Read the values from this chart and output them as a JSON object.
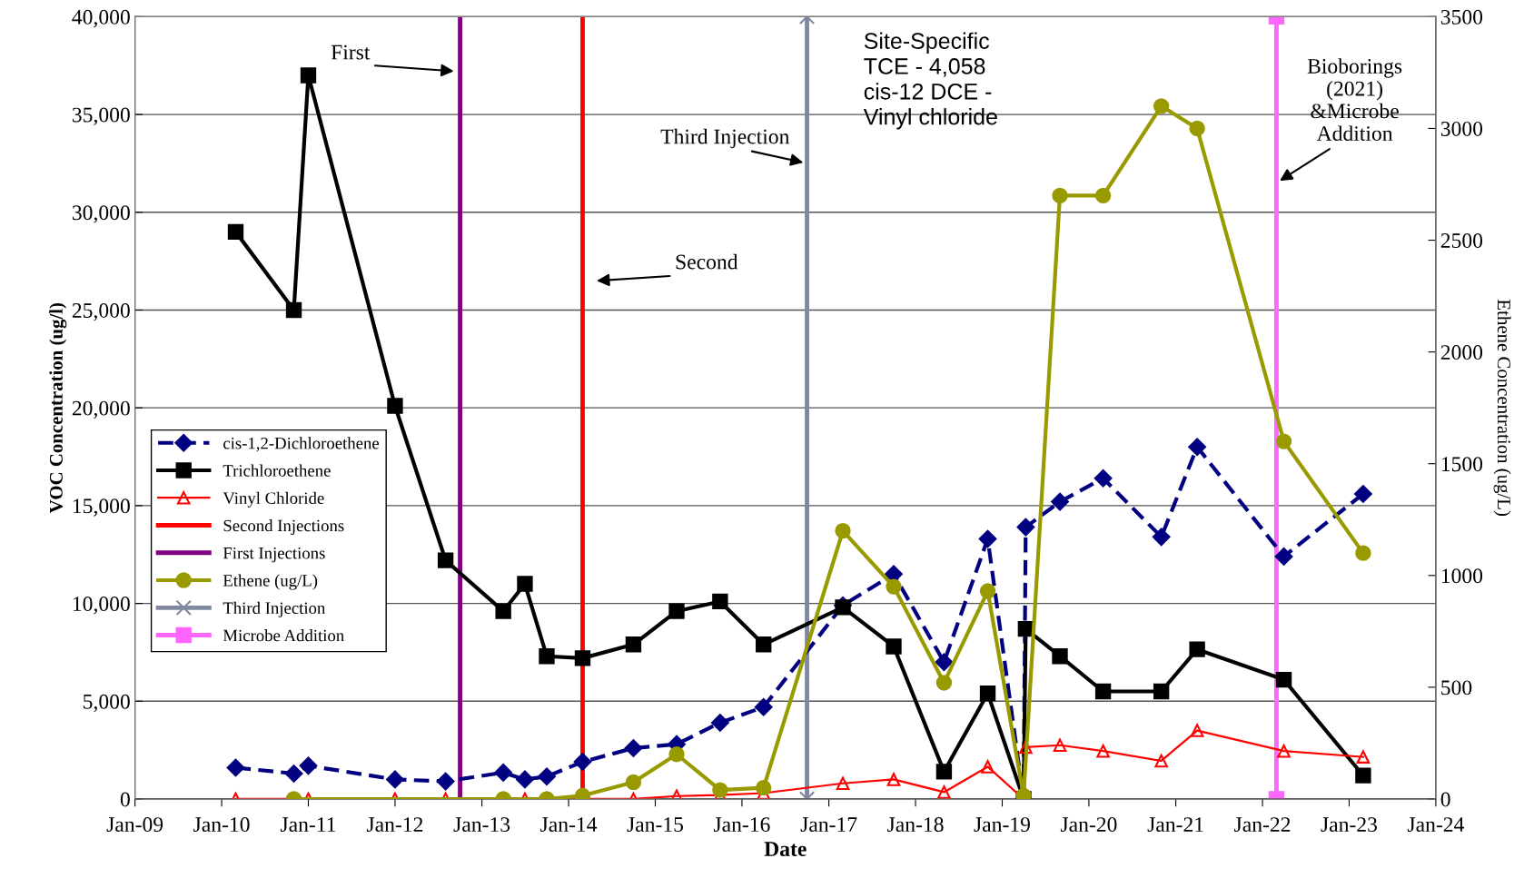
{
  "chart_data": {
    "type": "line",
    "xlabel": "Date",
    "ylabel": "VOC Concentration (ug/l)",
    "y2label": "Ethene Concentration (ug/L)",
    "xlim": [
      "2009-01",
      "2024-01"
    ],
    "xticks": [
      {
        "value": "2009-01",
        "label": "Jan-09"
      },
      {
        "value": "2010-01",
        "label": "Jan-10"
      },
      {
        "value": "2011-01",
        "label": "Jan-11"
      },
      {
        "value": "2012-01",
        "label": "Jan-12"
      },
      {
        "value": "2013-01",
        "label": "Jan-13"
      },
      {
        "value": "2014-01",
        "label": "Jan-14"
      },
      {
        "value": "2015-01",
        "label": "Jan-15"
      },
      {
        "value": "2016-01",
        "label": "Jan-16"
      },
      {
        "value": "2017-01",
        "label": "Jan-17"
      },
      {
        "value": "2018-01",
        "label": "Jan-18"
      },
      {
        "value": "2019-01",
        "label": "Jan-19"
      },
      {
        "value": "2020-01",
        "label": "Jan-20"
      },
      {
        "value": "2021-01",
        "label": "Jan-21"
      },
      {
        "value": "2022-01",
        "label": "Jan-22"
      },
      {
        "value": "2023-01",
        "label": "Jan-23"
      },
      {
        "value": "2024-01",
        "label": "Jan-24"
      }
    ],
    "ylim": [
      0,
      40000
    ],
    "yticks": [
      0,
      {
        "value": 5000,
        "label": "5,000"
      },
      {
        "value": 10000,
        "label": "10,000"
      },
      {
        "value": 15000,
        "label": "15,000"
      },
      {
        "value": 20000,
        "label": "20,000"
      },
      {
        "value": 25000,
        "label": "25,000"
      },
      {
        "value": 30000,
        "label": "30,000"
      },
      {
        "value": 35000,
        "label": "35,000"
      },
      {
        "value": 40000,
        "label": "40,000"
      }
    ],
    "y2lim": [
      0,
      3500
    ],
    "y2ticks": [
      0,
      500,
      1000,
      1500,
      2000,
      2500,
      3000,
      3500
    ],
    "grid": "y",
    "legend": "left",
    "series": [
      {
        "name": "cis-1,2-Dichloroethene",
        "color": "#000080",
        "marker": "diamond",
        "line_style": "dashed",
        "x": [
          "2010-03",
          "2010-11",
          "2011-01",
          "2012-01",
          "2012-08",
          "2013-04",
          "2013-07",
          "2013-10",
          "2014-03",
          "2014-10",
          "2015-04",
          "2015-10",
          "2016-04",
          "2017-03",
          "2017-10",
          "2018-05",
          "2018-11",
          "2019-04-01",
          "2019-04-10",
          "2019-09",
          "2020-03",
          "2020-11",
          "2021-04",
          "2022-04",
          "2023-03"
        ],
        "values": [
          1600,
          1300,
          1700,
          1000,
          900,
          1350,
          1000,
          1150,
          1900,
          2600,
          2800,
          3900,
          4700,
          9900,
          11500,
          7000,
          13300,
          0,
          13900,
          15200,
          16400,
          13400,
          18000,
          12400,
          15600
        ]
      },
      {
        "name": "Trichloroethene",
        "color": "#000000",
        "marker": "square",
        "line_style": "solid",
        "x": [
          "2010-03",
          "2010-11",
          "2011-01",
          "2012-01",
          "2012-08",
          "2013-04",
          "2013-07",
          "2013-10",
          "2014-03",
          "2014-10",
          "2015-04",
          "2015-10",
          "2016-04",
          "2017-03",
          "2017-10",
          "2018-05",
          "2018-11",
          "2019-04-01",
          "2019-04-10",
          "2019-09",
          "2020-03",
          "2020-11",
          "2021-04",
          "2022-04",
          "2023-03"
        ],
        "values": [
          29000,
          25000,
          37000,
          20100,
          12200,
          9600,
          11000,
          7300,
          7200,
          7900,
          9600,
          10100,
          7900,
          9800,
          7800,
          1400,
          5400,
          0,
          8700,
          7300,
          5500,
          5500,
          7650,
          6100,
          1200
        ]
      },
      {
        "name": "Vinyl Chloride",
        "color": "#ff0000",
        "marker": "triangle",
        "line_style": "solid",
        "x": [
          "2010-03",
          "2011-01",
          "2012-01",
          "2012-08",
          "2013-07",
          "2014-03",
          "2014-10",
          "2015-04",
          "2015-10",
          "2016-04",
          "2017-03",
          "2017-10",
          "2018-05",
          "2018-11",
          "2019-04-01",
          "2019-04-10",
          "2019-09",
          "2020-03",
          "2020-11",
          "2021-04",
          "2022-04",
          "2023-03"
        ],
        "values": [
          0,
          0,
          0,
          0,
          0,
          0,
          0,
          150,
          200,
          300,
          800,
          1000,
          350,
          1650,
          0,
          2650,
          2750,
          2450,
          1950,
          3500,
          2450,
          2150
        ]
      },
      {
        "name": "Second Injections",
        "color": "#ff0000",
        "marker": "none",
        "line_style": "solid",
        "x": [
          "2014-03",
          "2014-03"
        ],
        "values": [
          0,
          40000
        ]
      },
      {
        "name": "First Injections",
        "color": "#800080",
        "marker": "none",
        "line_style": "solid",
        "x": [
          "2012-10",
          "2012-10"
        ],
        "values": [
          0,
          40000
        ]
      },
      {
        "name": "Ethene (ug/L)",
        "color": "#999900",
        "marker": "circle",
        "line_style": "solid",
        "axis": "y2",
        "x": [
          "2010-11",
          "2013-04",
          "2013-10",
          "2014-03",
          "2014-10",
          "2015-04",
          "2015-10",
          "2016-04",
          "2017-03",
          "2017-10",
          "2018-05",
          "2018-11",
          "2019-04-01",
          "2019-09",
          "2020-03",
          "2020-11",
          "2021-04",
          "2022-04",
          "2023-03"
        ],
        "values": [
          0,
          0,
          0,
          15,
          75,
          200,
          40,
          50,
          1200,
          950,
          520,
          930,
          15,
          2700,
          2700,
          3100,
          3000,
          1600,
          1100
        ]
      },
      {
        "name": "Third Injection",
        "color": "#8088a0",
        "marker": "cross",
        "line_style": "solid",
        "x": [
          "2016-10",
          "2016-10"
        ],
        "values": [
          0,
          40000
        ]
      },
      {
        "name": "Microbe Addition",
        "color": "#ff66ff",
        "marker": "square",
        "line_style": "solid",
        "x": [
          "2022-03",
          "2022-03"
        ],
        "values": [
          0,
          40000
        ]
      }
    ],
    "annotations": [
      "First",
      "Second",
      {
        "text": "Third Injection",
        "x": "2016-10",
        "y": 32500
      },
      {
        "text": "Bioborings\n(2021)\n&Microbe\nAddition",
        "x": "2022-03",
        "y": 31500
      },
      "Site-Specific\nTCE - 4,058\ncis-12 DCE -\nVinyl chloride"
    ]
  }
}
